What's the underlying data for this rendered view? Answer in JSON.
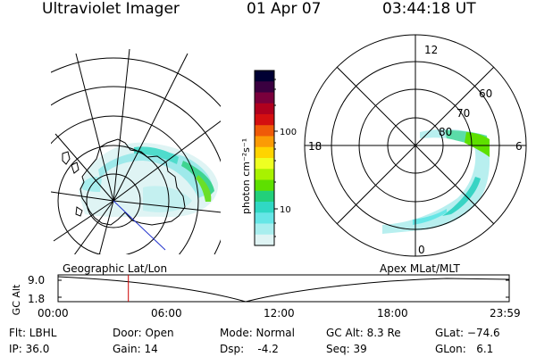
{
  "header": {
    "instrument": "Ultraviolet Imager",
    "date": "01 Apr 07",
    "time": "03:44:18 UT"
  },
  "geo_panel": {
    "label": "Geographic Lat/Lon"
  },
  "apex_panel": {
    "label": "Apex MLat/MLT",
    "mlt_labels": [
      "12",
      "18",
      "6",
      "0"
    ],
    "mlat_labels": [
      "60",
      "70",
      "80"
    ]
  },
  "colorbar": {
    "unit_label": "photon cm⁻²s⁻¹",
    "tick_labels": [
      "100",
      "10"
    ],
    "colors": [
      "#000033",
      "#3a0040",
      "#7a003c",
      "#b0001e",
      "#d40f10",
      "#ef5a08",
      "#fb9b05",
      "#ffd400",
      "#eeff22",
      "#a8f200",
      "#5ee000",
      "#22d07a",
      "#30d8c4",
      "#66e6e6",
      "#a8eeee",
      "#dff4f4"
    ]
  },
  "altitude_plot": {
    "ylabel": "GC Alt",
    "y_ticks": [
      "9.0",
      "1.8"
    ],
    "x_ticks": [
      "00:00",
      "06:00",
      "12:00",
      "18:00",
      "23:59"
    ],
    "marker_color": "#cc0000",
    "marker_time_hours": 3.74
  },
  "info": {
    "filter": "Flt: LBHL",
    "ip": "IP: 36.0",
    "door": "Door: Open",
    "gain": "Gain: 14",
    "mode": "Mode: Normal",
    "dsp": "Dsp:    -4.2",
    "gc_alt": "GC Alt: 8.3 Re",
    "seq": "Seq: 39",
    "glat": "GLat: −74.6",
    "glon": "GLon:   6.1"
  }
}
